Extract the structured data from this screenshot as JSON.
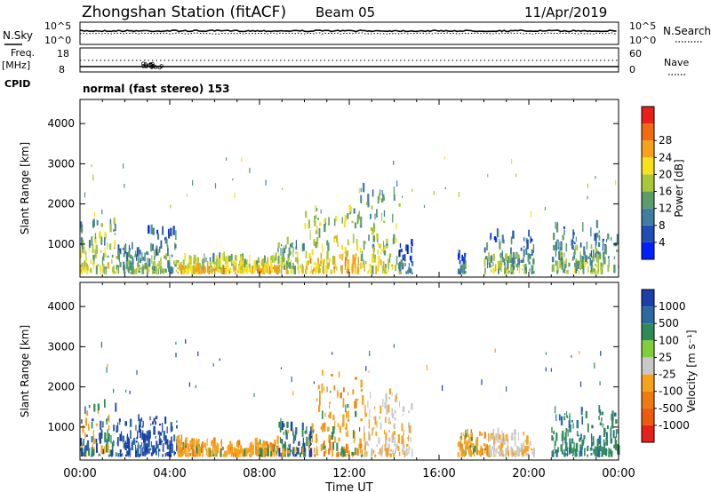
{
  "header": {
    "station": "Zhongshan Station (fitACF)",
    "beam": "Beam 05",
    "date": "11/Apr/2019"
  },
  "left_labels": {
    "nsky": "N.Sky",
    "freq": "Freq.",
    "freq_unit": "[MHz]",
    "cpid": "CPID"
  },
  "right_labels": {
    "nsearch": "N.Search",
    "nave": "Nave"
  },
  "cpid_text": "normal (fast stereo) 153",
  "chart_data": [
    {
      "type": "line",
      "name": "noise-panel",
      "x_range_hours": [
        0,
        24
      ],
      "left_ticks": [
        "10^5",
        "10^0"
      ],
      "right_ticks": [
        "10^5",
        "10^0"
      ],
      "series": [
        {
          "key": "nsky",
          "approx_level_fraction": 0.62
        },
        {
          "key": "nsearch",
          "approx_level_fraction": 0.55
        }
      ]
    },
    {
      "type": "line",
      "name": "freq-nave-panel",
      "x_range_hours": [
        0,
        24
      ],
      "left_ticks": [
        "18",
        "8"
      ],
      "right_ticks": [
        "60",
        "0"
      ],
      "series": [
        {
          "key": "freq",
          "approx_level": 8.5
        },
        {
          "key": "nave",
          "approx_level": 16
        }
      ]
    },
    {
      "type": "heatmap",
      "name": "power",
      "ylabel": "Slant Range [km]",
      "yticks": [
        1000,
        2000,
        3000,
        4000
      ],
      "ylim": [
        180,
        4600
      ],
      "colorbar_label": "Power [dB]",
      "colorbar_ticks": [
        4,
        8,
        12,
        16,
        20,
        24,
        28
      ],
      "colorbar_colors": [
        "#0020ff",
        "#1f4fb0",
        "#3f7ea0",
        "#5a9c6a",
        "#a8c83a",
        "#f5e21b",
        "#f7a21b",
        "#f06b12",
        "#e8201a"
      ],
      "clusters": [
        {
          "t": [
            0.0,
            1.6
          ],
          "r": [
            250,
            1500
          ],
          "level": 4
        },
        {
          "t": [
            1.6,
            3.0
          ],
          "r": [
            250,
            900
          ],
          "level": 3
        },
        {
          "t": [
            3.0,
            4.3
          ],
          "r": [
            250,
            1300
          ],
          "level": 3
        },
        {
          "t": [
            4.3,
            8.8
          ],
          "r": [
            250,
            600
          ],
          "level": 5
        },
        {
          "t": [
            8.8,
            10.0
          ],
          "r": [
            250,
            1000
          ],
          "level": 4
        },
        {
          "t": [
            10.0,
            12.4
          ],
          "r": [
            250,
            1800
          ],
          "level": 5
        },
        {
          "t": [
            12.4,
            14.2
          ],
          "r": [
            250,
            2300
          ],
          "level": 4
        },
        {
          "t": [
            14.2,
            14.8
          ],
          "r": [
            250,
            1000
          ],
          "level": 2
        },
        {
          "t": [
            16.8,
            17.2
          ],
          "r": [
            250,
            700
          ],
          "level": 2
        },
        {
          "t": [
            18.0,
            20.2
          ],
          "r": [
            250,
            1200
          ],
          "level": 3
        },
        {
          "t": [
            21.0,
            24.0
          ],
          "r": [
            250,
            1400
          ],
          "level": 3
        }
      ]
    },
    {
      "type": "heatmap",
      "name": "velocity",
      "ylabel": "Slant Range [km]",
      "yticks": [
        1000,
        2000,
        3000,
        4000
      ],
      "ylim": [
        180,
        4600
      ],
      "xticks": [
        "00:00",
        "04:00",
        "08:00",
        "12:00",
        "16:00",
        "20:00",
        "00:00"
      ],
      "xlabel": "Time UT",
      "colorbar_label": "Velocity [m s⁻¹]",
      "colorbar_ticks": [
        "1000",
        "500",
        "100",
        "25",
        "-25",
        "-100",
        "-500",
        "-1000"
      ],
      "colorbar_colors": [
        "#1c3fa8",
        "#2a6aa0",
        "#2e8b57",
        "#7fcf3a",
        "#c8c8c8",
        "#f7a21b",
        "#f07a12",
        "#ee5a10",
        "#e8201a"
      ],
      "clusters": [
        {
          "t": [
            0.0,
            1.6
          ],
          "r": [
            250,
            1500
          ],
          "tone": "mixed"
        },
        {
          "t": [
            1.6,
            4.3
          ],
          "r": [
            250,
            1200
          ],
          "tone": "blue"
        },
        {
          "t": [
            4.3,
            8.8
          ],
          "r": [
            250,
            600
          ],
          "tone": "orange"
        },
        {
          "t": [
            8.8,
            10.4
          ],
          "r": [
            250,
            1000
          ],
          "tone": "mixed"
        },
        {
          "t": [
            10.4,
            12.6
          ],
          "r": [
            250,
            2300
          ],
          "tone": "orange"
        },
        {
          "t": [
            12.6,
            14.8
          ],
          "r": [
            250,
            1900
          ],
          "tone": "grey"
        },
        {
          "t": [
            16.8,
            18.2
          ],
          "r": [
            250,
            800
          ],
          "tone": "orange"
        },
        {
          "t": [
            18.2,
            20.2
          ],
          "r": [
            250,
            800
          ],
          "tone": "grey"
        },
        {
          "t": [
            21.0,
            24.0
          ],
          "r": [
            250,
            1400
          ],
          "tone": "green"
        }
      ]
    }
  ]
}
